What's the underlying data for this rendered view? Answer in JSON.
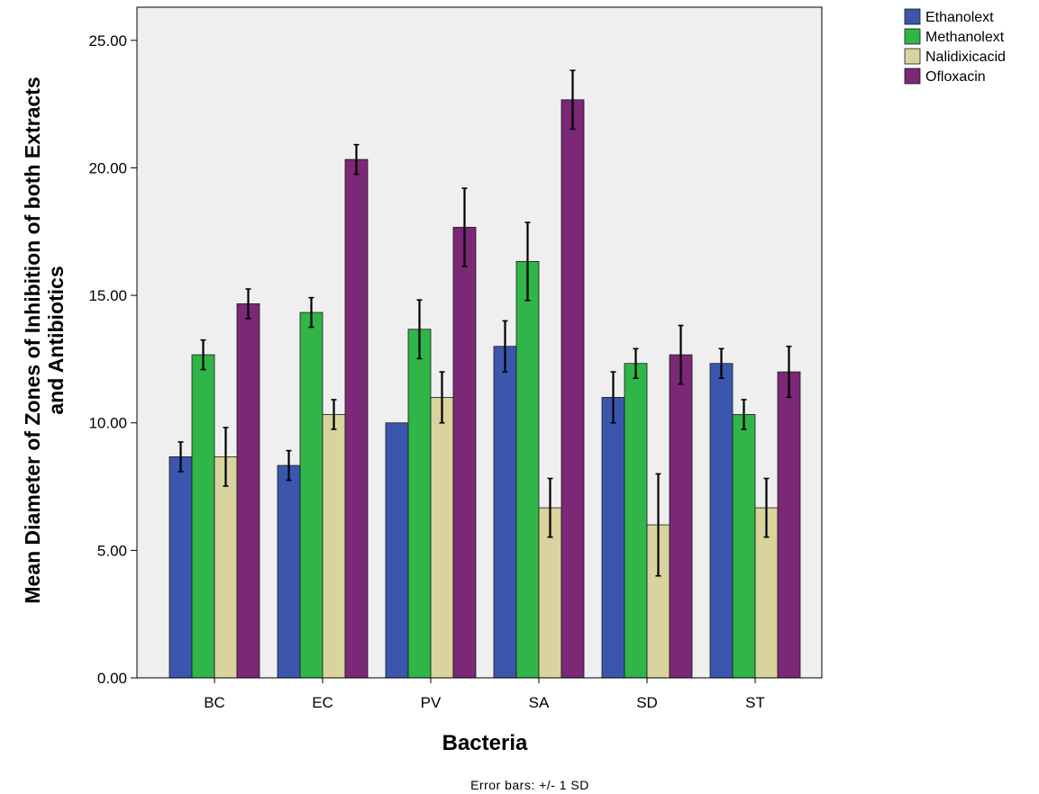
{
  "chart_data": {
    "type": "bar",
    "title": "",
    "xlabel": "Bacteria",
    "ylabel_line1": "Mean Diameter of Zones of Inhibition of both Extracts",
    "ylabel_line2": "and Antibiotics",
    "categories": [
      "BC",
      "EC",
      "PV",
      "SA",
      "SD",
      "ST"
    ],
    "yticks": [
      "0.00",
      "5.00",
      "10.00",
      "15.00",
      "20.00",
      "25.00"
    ],
    "ylim": [
      0,
      26.3
    ],
    "legend_position": "top-right, outside plot area",
    "grid": false,
    "plot_background": "#efefef",
    "footnote": "Error bars: +/- 1 SD",
    "series": [
      {
        "name": "Ethanolext",
        "color": "#3a57ad",
        "values": [
          8.67,
          8.33,
          10.0,
          13.0,
          11.0,
          12.33
        ],
        "sd": [
          0.58,
          0.58,
          0.0,
          1.0,
          1.0,
          0.58
        ]
      },
      {
        "name": "Methanolext",
        "color": "#2fb548",
        "values": [
          12.67,
          14.33,
          13.67,
          16.33,
          12.33,
          10.33
        ],
        "sd": [
          0.58,
          0.58,
          1.15,
          1.53,
          0.58,
          0.58
        ]
      },
      {
        "name": "Nalidixicacid",
        "color": "#d9d39d",
        "values": [
          8.67,
          10.33,
          11.0,
          6.67,
          6.0,
          6.67
        ],
        "sd": [
          1.15,
          0.58,
          1.0,
          1.15,
          2.0,
          1.15
        ]
      },
      {
        "name": "Ofloxacin",
        "color": "#7b2876",
        "values": [
          14.67,
          20.33,
          17.67,
          22.67,
          12.67,
          12.0
        ],
        "sd": [
          0.58,
          0.58,
          1.53,
          1.15,
          1.15,
          1.0
        ]
      }
    ]
  }
}
